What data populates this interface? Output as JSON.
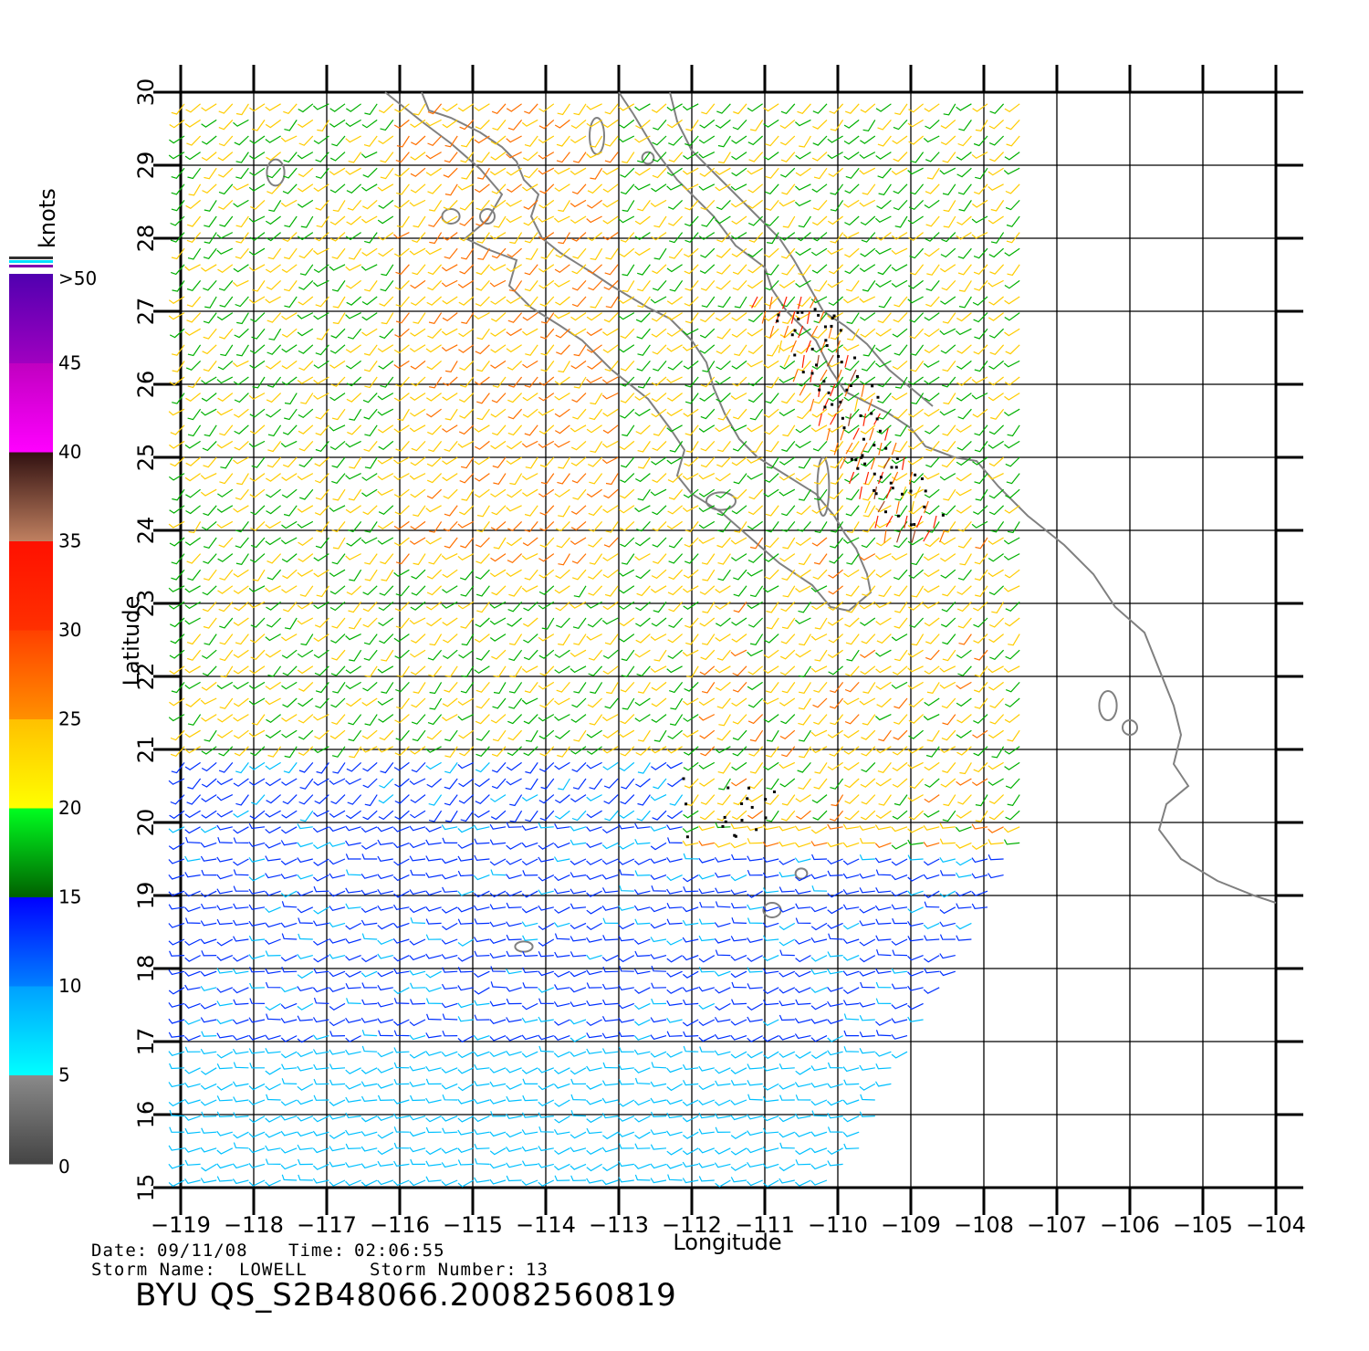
{
  "header": {
    "date_label": "Date:",
    "date_value": "09/11/08",
    "time_label": "Time:",
    "time_value": "02:06:55",
    "storm_name_label": "Storm  Name:",
    "storm_name_value": "LOWELL",
    "storm_number_label": "Storm  Number:",
    "storm_number_value": "13",
    "product_title": "BYU  QS_S2B48066.20082560819"
  },
  "axes": {
    "xlabel": "Longitude",
    "ylabel": "Latitude",
    "lon_ticks": [
      "−119",
      "−118",
      "−117",
      "−116",
      "−115",
      "−114",
      "−113",
      "−112",
      "−111",
      "−110",
      "−109",
      "−108",
      "−107",
      "−106",
      "−105",
      "−104"
    ],
    "lat_ticks": [
      "15",
      "16",
      "17",
      "18",
      "19",
      "20",
      "21",
      "22",
      "23",
      "24",
      "25",
      "26",
      "27",
      "28",
      "29",
      "30"
    ],
    "lon_range": [
      -119,
      -104
    ],
    "lat_range": [
      15,
      30
    ],
    "grid": true
  },
  "colorbar": {
    "unit": "knots",
    "labels": [
      "0",
      "5",
      "10",
      "15",
      "20",
      "25",
      "30",
      "35",
      "40",
      "45",
      ">50"
    ],
    "colors": {
      "0-5": "#555555",
      "5-10": "#00e5ff",
      "10-15": "#0040ff",
      "15-20": "#00c000",
      "20-25": "#ffd000",
      "25-30": "#ff7000",
      "30-35": "#ff2000",
      "35-40": "#a05030",
      "40-45": "#ff00ff",
      "45-50": "#8000c0"
    }
  },
  "map": {
    "coastline_color": "#808080",
    "wind_field": "QuikSCAT wind barbs colored by speed",
    "storm": "LOWELL"
  }
}
